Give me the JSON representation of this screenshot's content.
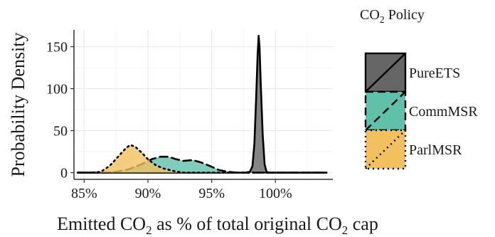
{
  "chart_data": {
    "type": "area",
    "title": "",
    "xlabel": {
      "pre": "Emitted CO",
      "sub1": "2",
      "mid": "  as % of total original CO",
      "sub2": "2",
      "post": " cap"
    },
    "ylabel": "Probability Density",
    "xlim": [
      84.2,
      104.5
    ],
    "ylim": [
      -8,
      170
    ],
    "x_ticks": [
      {
        "value": 85,
        "label": "85%"
      },
      {
        "value": 90,
        "label": "90%"
      },
      {
        "value": 95,
        "label": "95%"
      },
      {
        "value": 100,
        "label": "100%"
      }
    ],
    "y_ticks": [
      {
        "value": 0,
        "label": "0"
      },
      {
        "value": 50,
        "label": "50"
      },
      {
        "value": 100,
        "label": "100"
      },
      {
        "value": 150,
        "label": "150"
      }
    ],
    "grid": true,
    "legend": {
      "title_pre": "CO",
      "title_sub": "2",
      "title_post": " Policy",
      "placement": "right"
    },
    "series": [
      {
        "name": "PureETS",
        "fill": "#666666",
        "line": "solid",
        "points": [
          [
            84.5,
            0
          ],
          [
            97.6,
            0
          ],
          [
            98.0,
            1
          ],
          [
            98.2,
            8
          ],
          [
            98.35,
            35
          ],
          [
            98.5,
            95
          ],
          [
            98.6,
            140
          ],
          [
            98.68,
            163
          ],
          [
            98.75,
            150
          ],
          [
            98.85,
            105
          ],
          [
            99.0,
            45
          ],
          [
            99.15,
            10
          ],
          [
            99.3,
            1
          ],
          [
            99.5,
            0
          ],
          [
            104.0,
            0
          ]
        ]
      },
      {
        "name": "CommMSR",
        "fill": "#5fc1a9",
        "line": "dashed",
        "points": [
          [
            84.5,
            0
          ],
          [
            86.5,
            0
          ],
          [
            87.5,
            1
          ],
          [
            88.5,
            4
          ],
          [
            89.5,
            10
          ],
          [
            90.3,
            16
          ],
          [
            91.0,
            19
          ],
          [
            91.6,
            19
          ],
          [
            92.2,
            16
          ],
          [
            92.8,
            14
          ],
          [
            93.5,
            15
          ],
          [
            94.2,
            12
          ],
          [
            95.0,
            7
          ],
          [
            95.6,
            3
          ],
          [
            96.3,
            1
          ],
          [
            97.0,
            0
          ],
          [
            104.0,
            0
          ]
        ]
      },
      {
        "name": "ParlMSR",
        "fill": "#f2c05f",
        "line": "dotted",
        "points": [
          [
            84.5,
            0
          ],
          [
            85.5,
            0
          ],
          [
            86.3,
            1
          ],
          [
            87.0,
            8
          ],
          [
            87.6,
            18
          ],
          [
            88.2,
            28
          ],
          [
            88.6,
            33
          ],
          [
            89.0,
            31
          ],
          [
            89.5,
            24
          ],
          [
            90.0,
            16
          ],
          [
            90.6,
            9
          ],
          [
            91.2,
            5
          ],
          [
            92.0,
            2
          ],
          [
            92.8,
            0
          ],
          [
            104.0,
            0
          ]
        ]
      }
    ]
  }
}
